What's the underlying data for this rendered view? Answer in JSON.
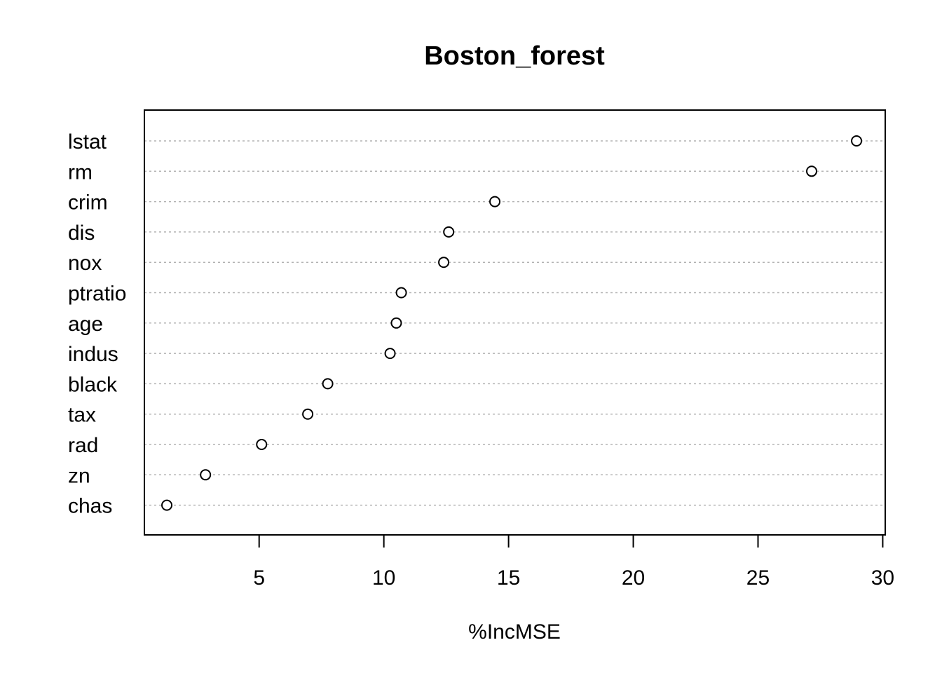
{
  "chart_data": {
    "type": "scatter",
    "title": "Boston_forest",
    "xlabel": "%IncMSE",
    "ylabel": "",
    "xlim": [
      0.4,
      30.1
    ],
    "xticks": [
      5,
      10,
      15,
      20,
      25,
      30
    ],
    "grid": "horizontal dotted",
    "marker": "open circle",
    "categories": [
      "lstat",
      "rm",
      "crim",
      "dis",
      "nox",
      "ptratio",
      "age",
      "indus",
      "black",
      "tax",
      "rad",
      "zn",
      "chas"
    ],
    "values": [
      28.95,
      27.15,
      14.45,
      12.6,
      12.4,
      10.7,
      10.5,
      10.25,
      7.75,
      6.95,
      5.1,
      2.85,
      1.3
    ]
  }
}
